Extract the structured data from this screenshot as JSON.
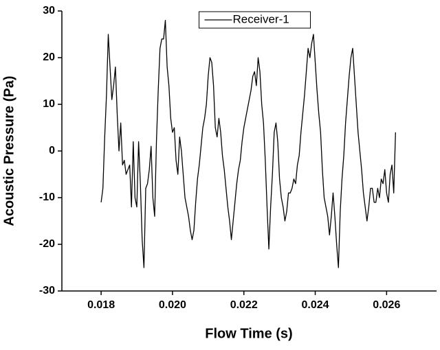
{
  "chart_data": {
    "type": "line",
    "x_label": "Flow Time (s)",
    "y_label": "Acoustic Pressure (Pa)",
    "xlim": [
      0.0169,
      0.0274
    ],
    "ylim": [
      -30,
      30
    ],
    "xticks": [
      0.018,
      {
        "value": 0.02,
        "label": "0.020"
      },
      0.022,
      0.024,
      0.026
    ],
    "yticks": [
      -30,
      -20,
      -10,
      0,
      10,
      20,
      30
    ],
    "legend_position": "upper center",
    "x": [
      0.018,
      0.01805,
      0.0181,
      0.01815,
      0.0182,
      0.01825,
      0.0183,
      0.01835,
      0.0184,
      0.01845,
      0.0185,
      0.01855,
      0.0186,
      0.01865,
      0.0187,
      0.01875,
      0.0188,
      0.01885,
      0.0189,
      0.01895,
      0.019,
      0.01905,
      0.0191,
      0.01915,
      0.0192,
      0.01925,
      0.0193,
      0.01935,
      0.0194,
      0.01945,
      0.0195,
      0.01955,
      0.0196,
      0.01965,
      0.0197,
      0.01975,
      0.0198,
      0.01985,
      0.0199,
      0.01995,
      0.02,
      0.02005,
      0.0201,
      0.02015,
      0.0202,
      0.02025,
      0.0203,
      0.02035,
      0.0204,
      0.02045,
      0.0205,
      0.02055,
      0.0206,
      0.02065,
      0.0207,
      0.02075,
      0.0208,
      0.02085,
      0.0209,
      0.02095,
      0.021,
      0.02105,
      0.0211,
      0.02115,
      0.0212,
      0.02125,
      0.0213,
      0.02135,
      0.0214,
      0.02145,
      0.0215,
      0.02155,
      0.0216,
      0.02165,
      0.0217,
      0.02175,
      0.0218,
      0.02185,
      0.0219,
      0.02195,
      0.022,
      0.02205,
      0.0221,
      0.02215,
      0.0222,
      0.02225,
      0.0223,
      0.02235,
      0.0224,
      0.02245,
      0.0225,
      0.02255,
      0.0226,
      0.02265,
      0.0227,
      0.02275,
      0.0228,
      0.02285,
      0.0229,
      0.02295,
      0.023,
      0.02305,
      0.0231,
      0.02315,
      0.0232,
      0.02325,
      0.0233,
      0.02335,
      0.0234,
      0.02345,
      0.0235,
      0.02355,
      0.0236,
      0.02365,
      0.0237,
      0.02375,
      0.0238,
      0.02385,
      0.0239,
      0.02395,
      0.024,
      0.02405,
      0.0241,
      0.02415,
      0.0242,
      0.02425,
      0.0243,
      0.02435,
      0.0244,
      0.02445,
      0.0245,
      0.02455,
      0.0246,
      0.02465,
      0.0247,
      0.02475,
      0.0248,
      0.02485,
      0.0249,
      0.02495,
      0.025,
      0.02505,
      0.0251,
      0.02515,
      0.0252,
      0.02525,
      0.0253,
      0.02535,
      0.0254,
      0.02545,
      0.0255,
      0.02555,
      0.0256,
      0.02565,
      0.0257,
      0.02575,
      0.0258,
      0.02585,
      0.0259,
      0.02595,
      0.026,
      0.02605,
      0.0261,
      0.02615,
      0.0262,
      0.02625
    ],
    "series": [
      {
        "name": "Receiver-1",
        "color": "#000000",
        "values": [
          -11,
          -8,
          3,
          12,
          25,
          18,
          11,
          14,
          18,
          8,
          0,
          6,
          -3,
          -2,
          -5,
          -4,
          -3,
          -12,
          2,
          -10,
          -12,
          2,
          -7,
          -19,
          -25,
          -8,
          -7,
          -4,
          1,
          -10,
          -14,
          2,
          13,
          22,
          24,
          24,
          28,
          18,
          14,
          7,
          4,
          5,
          -2,
          -5,
          3,
          0,
          -5,
          -10,
          -12,
          -14,
          -17,
          -19,
          -17,
          -11,
          -6,
          -3,
          1,
          5,
          7,
          10,
          16,
          20,
          19,
          14,
          5,
          3,
          7,
          4,
          -1,
          -4,
          -8,
          -12,
          -15,
          -19,
          -15,
          -11,
          -7,
          -4,
          -2,
          2,
          5,
          7,
          9,
          11,
          13,
          16,
          17,
          14,
          20,
          17,
          10,
          6,
          -2,
          -12,
          -21,
          -12,
          -5,
          4,
          6,
          2,
          -6,
          -10,
          -12,
          -15,
          -13,
          -9,
          -9,
          -8,
          -6,
          -7,
          -3,
          -1,
          4,
          8,
          12,
          17,
          22,
          20,
          23,
          25,
          19,
          13,
          8,
          4,
          -4,
          -10,
          -12,
          -14,
          -18,
          -14,
          -9,
          -14,
          -20,
          -25,
          -13,
          -6,
          -1,
          6,
          11,
          16,
          20,
          22,
          16,
          10,
          4,
          0,
          -4,
          -9,
          -12,
          -15,
          -12,
          -8,
          -8,
          -11,
          -11,
          -8,
          -10,
          -6,
          -7,
          -4,
          -9,
          -11,
          -5,
          -3,
          -9,
          4
        ]
      }
    ]
  }
}
